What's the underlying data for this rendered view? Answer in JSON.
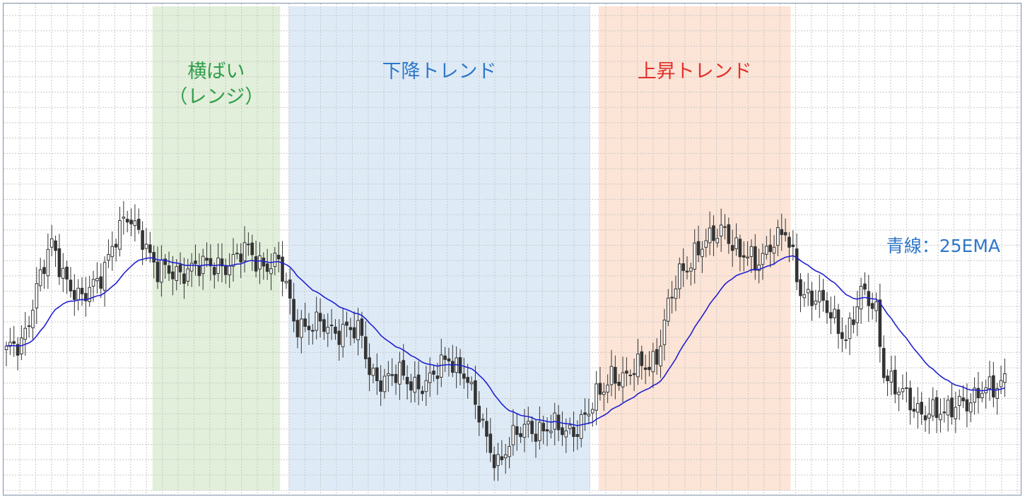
{
  "chart_data": {
    "type": "candlestick",
    "title": "",
    "xlabel": "",
    "ylabel": "",
    "grid": true,
    "ylim": [
      0,
      100
    ],
    "zones": [
      {
        "name": "range",
        "label_lines": [
          "横ばい",
          "（レンジ）"
        ],
        "color": "#e2efda",
        "text_color": "#2e9e4a",
        "start": 39,
        "end": 72
      },
      {
        "name": "downtrend",
        "label_lines": [
          "下降トレンド"
        ],
        "color": "#deebf7",
        "text_color": "#2f77c9",
        "start": 75,
        "end": 154
      },
      {
        "name": "uptrend",
        "label_lines": [
          "上昇トレンド"
        ],
        "color": "#fce4d6",
        "text_color": "#e3302b",
        "start": 157,
        "end": 207
      }
    ],
    "ema_label": "青線：25EMA",
    "ema_color": "#2020d0",
    "ema_label_color": "#2f77c9",
    "candle_color": "#333333",
    "waypoints": [
      [
        0,
        36
      ],
      [
        4,
        40
      ],
      [
        8,
        54
      ],
      [
        12,
        65
      ],
      [
        16,
        57
      ],
      [
        20,
        50
      ],
      [
        24,
        56
      ],
      [
        28,
        66
      ],
      [
        32,
        72
      ],
      [
        36,
        69
      ],
      [
        40,
        58
      ],
      [
        44,
        58
      ],
      [
        48,
        60
      ],
      [
        52,
        59
      ],
      [
        56,
        61
      ],
      [
        60,
        61
      ],
      [
        64,
        64
      ],
      [
        68,
        61
      ],
      [
        72,
        60
      ],
      [
        74,
        54
      ],
      [
        76,
        46
      ],
      [
        80,
        44
      ],
      [
        86,
        43
      ],
      [
        90,
        44
      ],
      [
        94,
        40
      ],
      [
        96,
        32
      ],
      [
        100,
        30
      ],
      [
        104,
        30
      ],
      [
        108,
        29
      ],
      [
        112,
        29
      ],
      [
        114,
        31
      ],
      [
        117,
        36
      ],
      [
        121,
        32
      ],
      [
        124,
        22
      ],
      [
        127,
        14
      ],
      [
        130,
        8
      ],
      [
        134,
        13
      ],
      [
        138,
        18
      ],
      [
        142,
        16
      ],
      [
        146,
        16
      ],
      [
        150,
        17
      ],
      [
        154,
        20
      ],
      [
        157,
        26
      ],
      [
        160,
        32
      ],
      [
        164,
        29
      ],
      [
        168,
        34
      ],
      [
        172,
        36
      ],
      [
        175,
        48
      ],
      [
        178,
        58
      ],
      [
        182,
        64
      ],
      [
        186,
        66
      ],
      [
        190,
        71
      ],
      [
        194,
        63
      ],
      [
        198,
        60
      ],
      [
        202,
        67
      ],
      [
        206,
        68
      ],
      [
        210,
        54
      ],
      [
        214,
        52
      ],
      [
        218,
        46
      ],
      [
        222,
        42
      ],
      [
        226,
        52
      ],
      [
        230,
        48
      ],
      [
        232,
        33
      ],
      [
        236,
        26
      ],
      [
        240,
        22
      ],
      [
        244,
        22
      ],
      [
        248,
        19
      ],
      [
        252,
        25
      ],
      [
        256,
        24
      ],
      [
        260,
        27
      ],
      [
        264,
        31
      ]
    ]
  }
}
